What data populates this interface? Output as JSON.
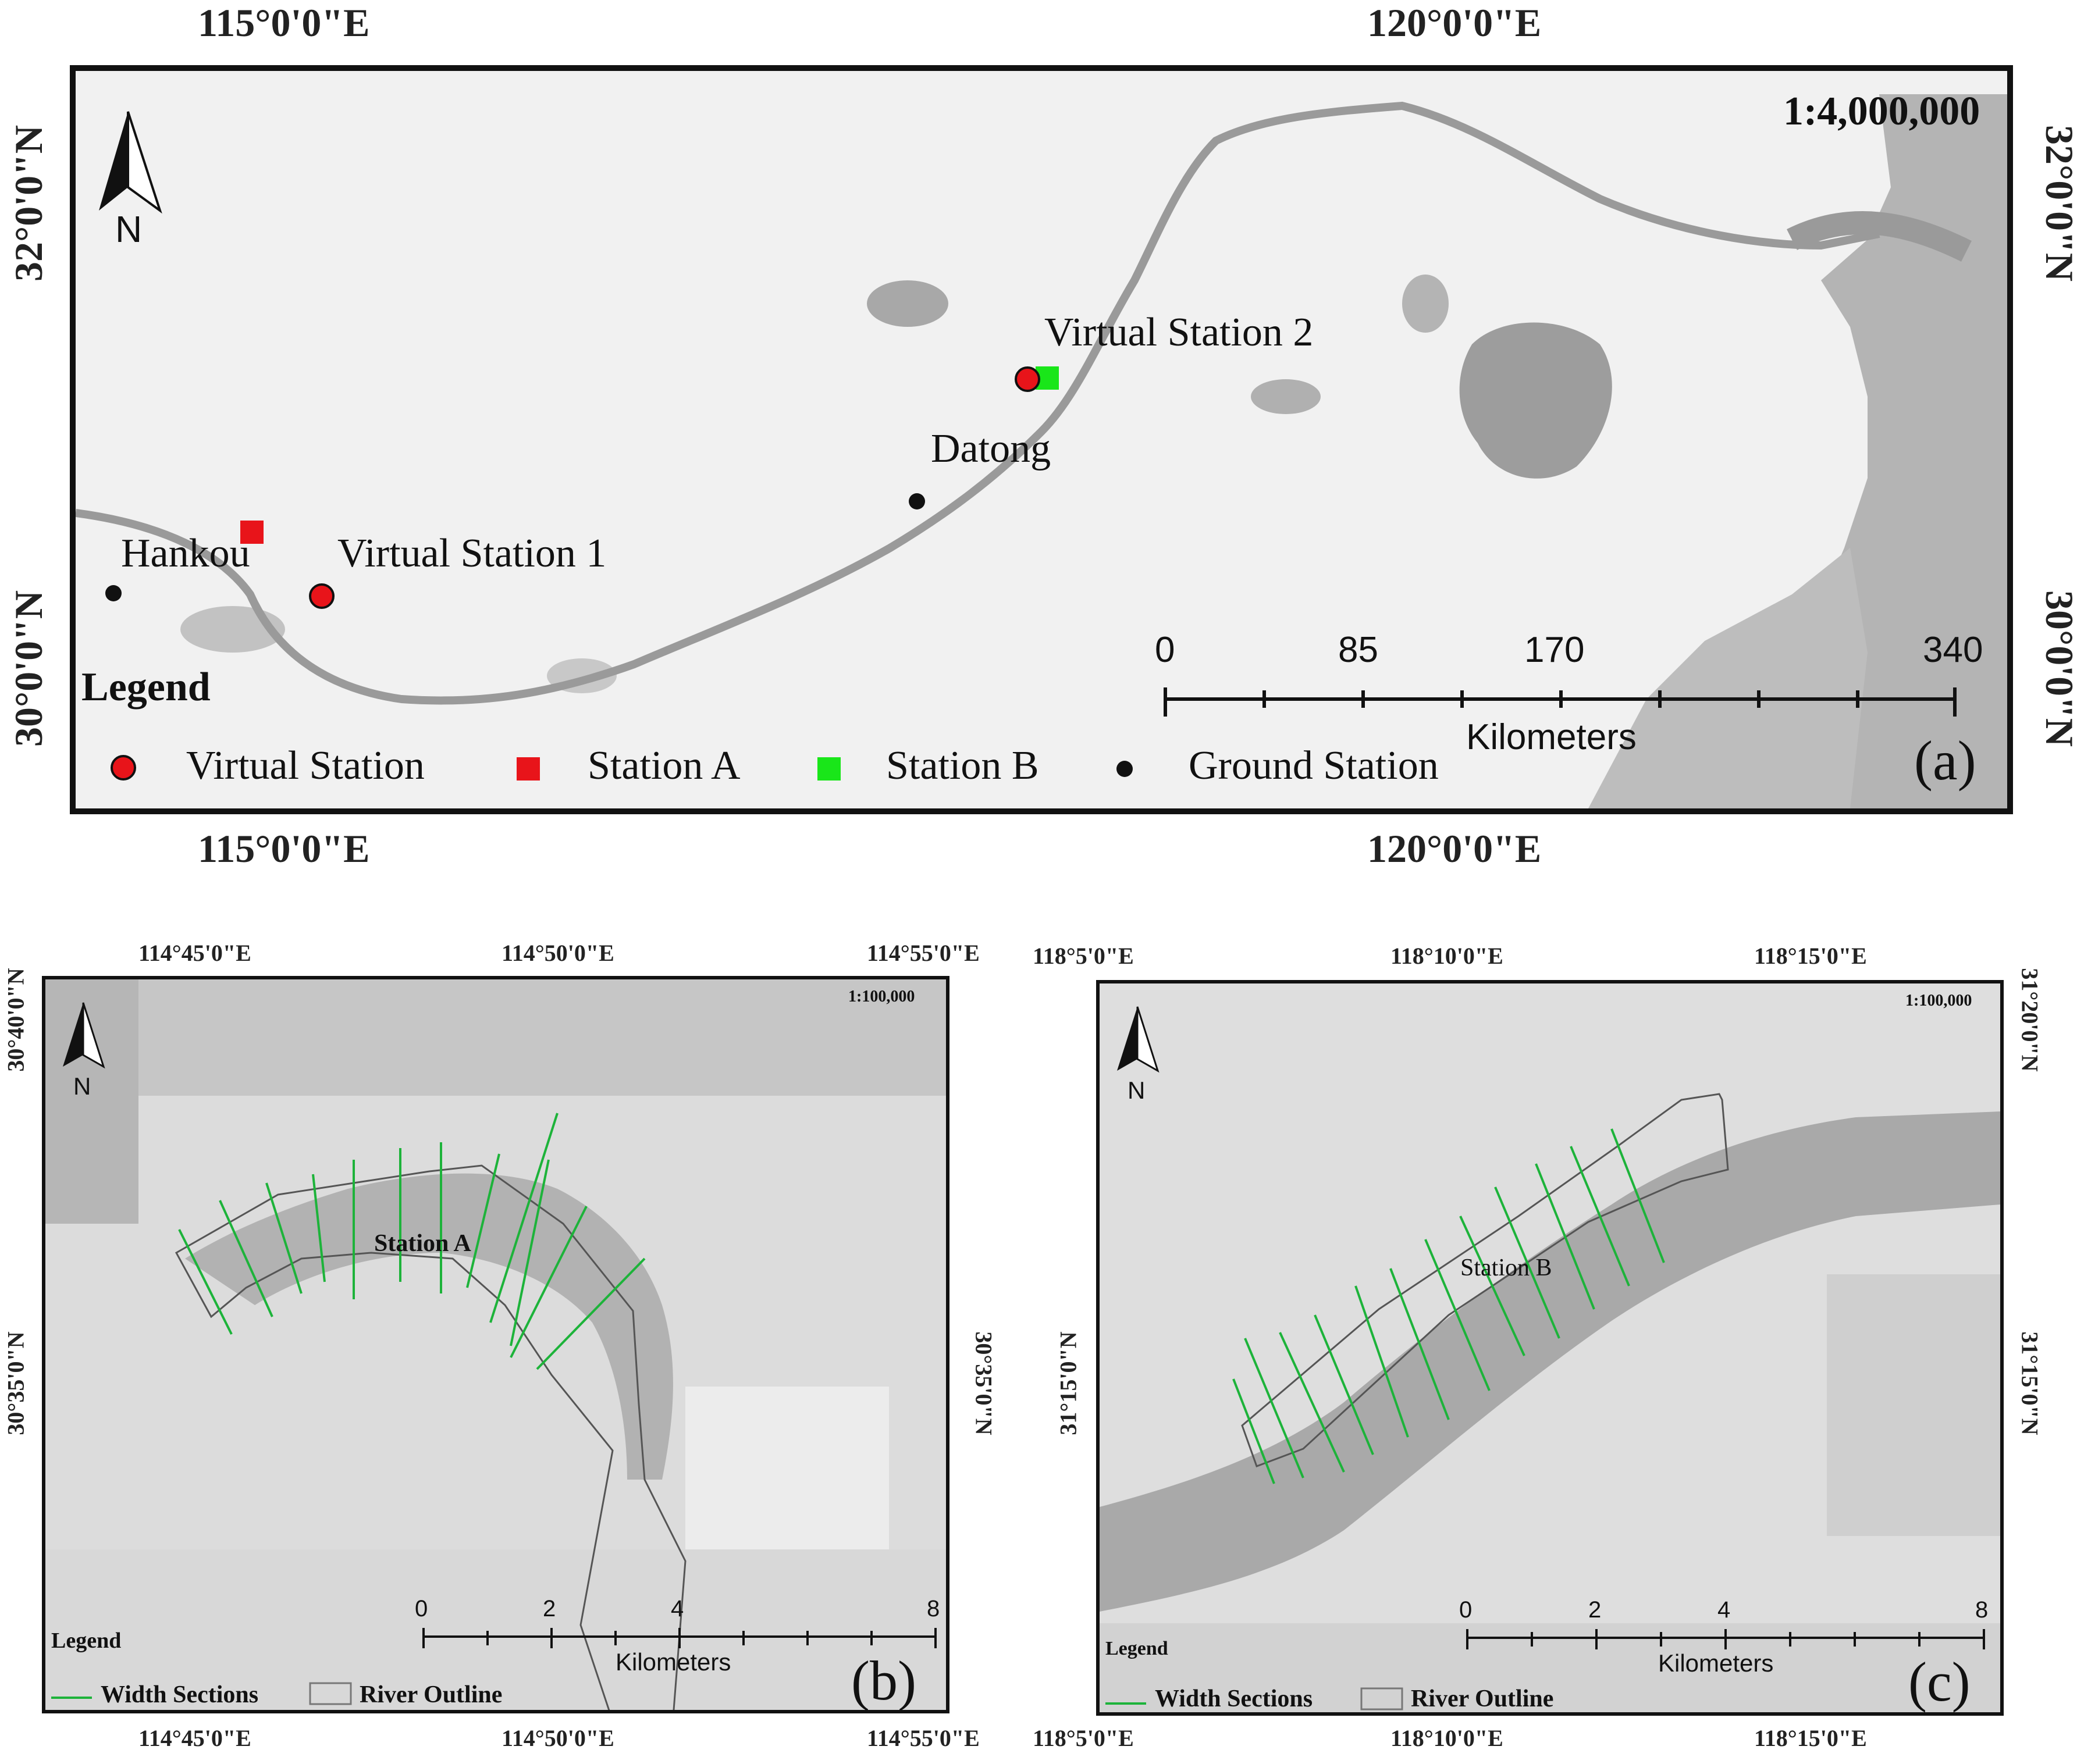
{
  "panel_a": {
    "lon_labels": [
      "115°0'0\"E",
      "120°0'0\"E"
    ],
    "lat_labels": [
      "32°0'0\"N",
      "30°0'0\"N"
    ],
    "scale_ratio": "1:4,000,000",
    "north": "N",
    "places": {
      "virtual_station_2": "Virtual Station 2",
      "datong": "Datong",
      "hankou": "Hankou",
      "virtual_station_1": "Virtual Station 1"
    },
    "legend": {
      "title": "Legend",
      "items": [
        "Virtual Station",
        "Station A",
        "Station B",
        "Ground Station"
      ]
    },
    "scalebar": {
      "ticks": [
        "0",
        "85",
        "170",
        "340"
      ],
      "unit": "Kilometers"
    },
    "panel_label": "(a)",
    "colors": {
      "virtual": "#e8141a",
      "station_a": "#e8141a",
      "station_b": "#19e619",
      "ground": "#111111"
    }
  },
  "panel_b": {
    "lon_labels": [
      "114°45'0\"E",
      "114°50'0\"E",
      "114°55'0\"E"
    ],
    "lat_labels": [
      "30°40'0\"N",
      "30°35'0\"N"
    ],
    "scale_ratio": "1:100,000",
    "north": "N",
    "station_label": "Station A",
    "legend": {
      "title": "Legend",
      "items": [
        "Width Sections",
        "River Outline"
      ]
    },
    "scalebar": {
      "ticks": [
        "0",
        "2",
        "4",
        "8"
      ],
      "unit": "Kilometers"
    },
    "panel_label": "(b)"
  },
  "panel_c": {
    "lon_labels": [
      "118°5'0\"E",
      "118°10'0\"E",
      "118°15'0\"E"
    ],
    "lat_labels": [
      "31°20'0\"N",
      "31°15'0\"N"
    ],
    "scale_ratio": "1:100,000",
    "north": "N",
    "station_label": "Station B",
    "legend": {
      "title": "Legend",
      "items": [
        "Width Sections",
        "River Outline"
      ]
    },
    "scalebar": {
      "ticks": [
        "0",
        "2",
        "4",
        "8"
      ],
      "unit": "Kilometers"
    },
    "panel_label": "(c)"
  }
}
